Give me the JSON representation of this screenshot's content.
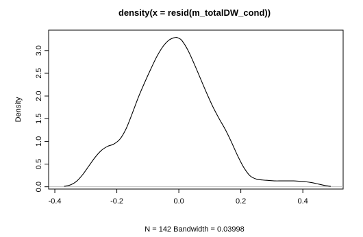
{
  "chart_data": {
    "type": "line",
    "title": "density(x = resid(m_totalDW_cond))",
    "xlabel": "N = 142   Bandwidth = 0.03998",
    "ylabel": "Density",
    "xlim": [
      -0.42,
      0.53
    ],
    "ylim": [
      -0.05,
      3.45
    ],
    "x_ticks": [
      -0.4,
      -0.2,
      0.0,
      0.2,
      0.4
    ],
    "x_tick_labels": [
      "-0.4",
      "-0.2",
      "0.0",
      "0.2",
      "0.4"
    ],
    "y_ticks": [
      0.0,
      0.5,
      1.0,
      1.5,
      2.0,
      2.5,
      3.0
    ],
    "y_tick_labels": [
      "0.0",
      "0.5",
      "1.0",
      "1.5",
      "2.0",
      "2.5",
      "3.0"
    ],
    "baseline": 0,
    "grid": false,
    "series": [
      {
        "x": [
          -0.37,
          -0.35,
          -0.33,
          -0.31,
          -0.29,
          -0.27,
          -0.25,
          -0.23,
          -0.21,
          -0.19,
          -0.17,
          -0.15,
          -0.13,
          -0.11,
          -0.09,
          -0.07,
          -0.05,
          -0.03,
          -0.01,
          0.0,
          0.01,
          0.03,
          0.05,
          0.07,
          0.09,
          0.11,
          0.13,
          0.15,
          0.17,
          0.19,
          0.21,
          0.23,
          0.25,
          0.27,
          0.29,
          0.31,
          0.33,
          0.35,
          0.37,
          0.39,
          0.41,
          0.43,
          0.45,
          0.47,
          0.49
        ],
        "y": [
          0.01,
          0.04,
          0.12,
          0.27,
          0.46,
          0.65,
          0.8,
          0.89,
          0.94,
          1.05,
          1.28,
          1.62,
          1.98,
          2.3,
          2.6,
          2.88,
          3.1,
          3.24,
          3.29,
          3.27,
          3.22,
          3.0,
          2.7,
          2.38,
          2.06,
          1.76,
          1.5,
          1.26,
          0.98,
          0.68,
          0.42,
          0.24,
          0.17,
          0.15,
          0.14,
          0.13,
          0.13,
          0.13,
          0.13,
          0.12,
          0.11,
          0.09,
          0.06,
          0.03,
          0.01
        ]
      }
    ]
  }
}
